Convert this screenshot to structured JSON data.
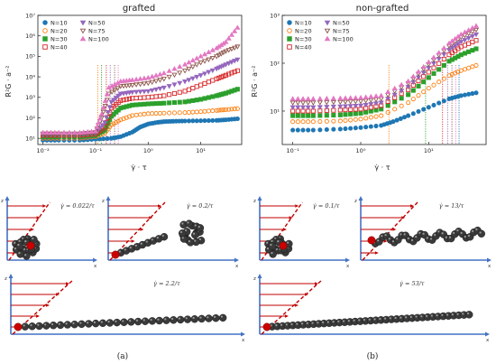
{
  "chart_data": [
    {
      "type": "scatter",
      "title": "grafted",
      "xscale": "log",
      "yscale": "log",
      "xlim": [
        0.008,
        60
      ],
      "ylim": [
        5,
        10000000
      ],
      "xticks": [
        "10⁻²",
        "10⁻¹",
        "10⁰",
        "10¹"
      ],
      "yticks": [
        "10¹",
        "10²",
        "10³",
        "10⁴",
        "10⁵",
        "10⁶",
        "10⁷"
      ],
      "xlabel": "γ̇ · τ",
      "ylabel": "R²G · a⁻²",
      "legend": "upper-left",
      "vlines": [
        0.11,
        0.13,
        0.16,
        0.19,
        0.23,
        0.27
      ],
      "series": [
        {
          "name": "N=10",
          "color": "#1f77b4",
          "marker": "circle-filled",
          "points": [
            [
              0.01,
              8
            ],
            [
              0.02,
              8
            ],
            [
              0.05,
              8
            ],
            [
              0.1,
              9
            ],
            [
              0.2,
              10
            ],
            [
              0.3,
              12
            ],
            [
              0.5,
              20
            ],
            [
              0.7,
              35
            ],
            [
              1,
              50
            ],
            [
              1.5,
              60
            ],
            [
              2,
              65
            ],
            [
              3,
              68
            ],
            [
              5,
              70
            ],
            [
              10,
              72
            ],
            [
              20,
              75
            ],
            [
              30,
              80
            ],
            [
              50,
              90
            ]
          ]
        },
        {
          "name": "N=20",
          "color": "#ff7f0e",
          "marker": "circle-open",
          "points": [
            [
              0.01,
              10
            ],
            [
              0.02,
              10
            ],
            [
              0.05,
              10
            ],
            [
              0.1,
              12
            ],
            [
              0.15,
              18
            ],
            [
              0.2,
              45
            ],
            [
              0.3,
              80
            ],
            [
              0.5,
              130
            ],
            [
              1,
              160
            ],
            [
              2,
              170
            ],
            [
              5,
              180
            ],
            [
              10,
              200
            ],
            [
              20,
              230
            ],
            [
              30,
              250
            ],
            [
              50,
              280
            ]
          ]
        },
        {
          "name": "N=30",
          "color": "#2ca02c",
          "marker": "square-filled",
          "points": [
            [
              0.01,
              12
            ],
            [
              0.02,
              12
            ],
            [
              0.05,
              12
            ],
            [
              0.1,
              14
            ],
            [
              0.15,
              25
            ],
            [
              0.2,
              120
            ],
            [
              0.3,
              300
            ],
            [
              0.5,
              420
            ],
            [
              1,
              480
            ],
            [
              2,
              520
            ],
            [
              5,
              600
            ],
            [
              10,
              800
            ],
            [
              20,
              1200
            ],
            [
              30,
              1600
            ],
            [
              50,
              2500
            ]
          ]
        },
        {
          "name": "N=40",
          "color": "#d62728",
          "marker": "square-open",
          "points": [
            [
              0.01,
              14
            ],
            [
              0.02,
              14
            ],
            [
              0.05,
              14
            ],
            [
              0.1,
              16
            ],
            [
              0.15,
              35
            ],
            [
              0.2,
              300
            ],
            [
              0.3,
              700
            ],
            [
              0.5,
              900
            ],
            [
              1,
              1000
            ],
            [
              2,
              1200
            ],
            [
              5,
              2000
            ],
            [
              10,
              4000
            ],
            [
              20,
              8000
            ],
            [
              30,
              12000
            ],
            [
              50,
              20000
            ]
          ]
        },
        {
          "name": "N=50",
          "color": "#9467bd",
          "marker": "tri-down-filled",
          "points": [
            [
              0.01,
              15
            ],
            [
              0.02,
              15
            ],
            [
              0.05,
              15
            ],
            [
              0.1,
              18
            ],
            [
              0.15,
              60
            ],
            [
              0.2,
              600
            ],
            [
              0.3,
              1500
            ],
            [
              0.5,
              1800
            ],
            [
              1,
              2000
            ],
            [
              2,
              3000
            ],
            [
              5,
              6000
            ],
            [
              10,
              12000
            ],
            [
              20,
              25000
            ],
            [
              30,
              40000
            ],
            [
              50,
              70000
            ]
          ]
        },
        {
          "name": "N=75",
          "color": "#8c564b",
          "marker": "tri-down-open",
          "points": [
            [
              0.01,
              17
            ],
            [
              0.02,
              17
            ],
            [
              0.05,
              17
            ],
            [
              0.1,
              20
            ],
            [
              0.13,
              100
            ],
            [
              0.18,
              1500
            ],
            [
              0.3,
              3500
            ],
            [
              0.5,
              4000
            ],
            [
              1,
              5000
            ],
            [
              2,
              8000
            ],
            [
              5,
              20000
            ],
            [
              10,
              50000
            ],
            [
              20,
              100000
            ],
            [
              30,
              180000
            ],
            [
              50,
              300000
            ]
          ]
        },
        {
          "name": "N=100",
          "color": "#e377c2",
          "marker": "tri-up-filled",
          "points": [
            [
              0.01,
              19
            ],
            [
              0.02,
              19
            ],
            [
              0.05,
              19
            ],
            [
              0.1,
              22
            ],
            [
              0.13,
              150
            ],
            [
              0.18,
              3000
            ],
            [
              0.3,
              6000
            ],
            [
              0.5,
              7000
            ],
            [
              1,
              9000
            ],
            [
              2,
              15000
            ],
            [
              5,
              40000
            ],
            [
              10,
              100000
            ],
            [
              20,
              250000
            ],
            [
              30,
              500000
            ],
            [
              50,
              2500000
            ]
          ]
        }
      ]
    },
    {
      "type": "scatter",
      "title": "non-grafted",
      "xscale": "log",
      "yscale": "log",
      "xlim": [
        0.07,
        70
      ],
      "ylim": [
        2,
        1000
      ],
      "xticks": [
        "10⁻¹",
        "10⁰",
        "10¹"
      ],
      "yticks": [
        "10¹",
        "10²",
        "10³"
      ],
      "xlabel": "γ̇ · τ",
      "ylabel": "R²G · a⁻²",
      "legend": "upper-left",
      "vlines": [
        2.6,
        9,
        16,
        19,
        22,
        25,
        28
      ],
      "series": [
        {
          "name": "N=10",
          "color": "#1f77b4",
          "marker": "circle-filled",
          "points": [
            [
              0.1,
              4
            ],
            [
              0.2,
              4
            ],
            [
              0.5,
              4.2
            ],
            [
              1,
              4.5
            ],
            [
              2,
              5
            ],
            [
              3,
              6
            ],
            [
              5,
              8
            ],
            [
              10,
              12
            ],
            [
              20,
              18
            ],
            [
              30,
              21
            ],
            [
              50,
              24
            ]
          ]
        },
        {
          "name": "N=20",
          "color": "#ff7f0e",
          "marker": "circle-open",
          "points": [
            [
              0.1,
              6
            ],
            [
              0.2,
              6
            ],
            [
              0.5,
              6.2
            ],
            [
              1,
              6.8
            ],
            [
              2,
              8
            ],
            [
              5,
              15
            ],
            [
              10,
              30
            ],
            [
              20,
              55
            ],
            [
              30,
              70
            ],
            [
              50,
              90
            ]
          ]
        },
        {
          "name": "N=30",
          "color": "#2ca02c",
          "marker": "square-filled",
          "points": [
            [
              0.1,
              8
            ],
            [
              0.2,
              8
            ],
            [
              0.5,
              8.3
            ],
            [
              1,
              9
            ],
            [
              2,
              11
            ],
            [
              5,
              22
            ],
            [
              10,
              50
            ],
            [
              20,
              110
            ],
            [
              30,
              150
            ],
            [
              50,
              200
            ]
          ]
        },
        {
          "name": "N=40",
          "color": "#d62728",
          "marker": "square-open",
          "points": [
            [
              0.1,
              10
            ],
            [
              0.2,
              10
            ],
            [
              0.5,
              10.5
            ],
            [
              1,
              11
            ],
            [
              2,
              13
            ],
            [
              5,
              28
            ],
            [
              10,
              65
            ],
            [
              20,
              150
            ],
            [
              30,
              220
            ],
            [
              50,
              300
            ]
          ]
        },
        {
          "name": "N=50",
          "color": "#9467bd",
          "marker": "tri-down-filled",
          "points": [
            [
              0.1,
              12
            ],
            [
              0.2,
              12
            ],
            [
              0.5,
              12.5
            ],
            [
              1,
              13
            ],
            [
              2,
              15
            ],
            [
              5,
              32
            ],
            [
              10,
              80
            ],
            [
              20,
              190
            ],
            [
              30,
              280
            ],
            [
              50,
              400
            ]
          ]
        },
        {
          "name": "N=75",
          "color": "#8c564b",
          "marker": "tri-down-open",
          "points": [
            [
              0.1,
              15
            ],
            [
              0.2,
              15
            ],
            [
              0.5,
              15.5
            ],
            [
              1,
              16
            ],
            [
              2,
              18
            ],
            [
              5,
              38
            ],
            [
              10,
              95
            ],
            [
              20,
              230
            ],
            [
              30,
              350
            ],
            [
              50,
              500
            ]
          ]
        },
        {
          "name": "N=100",
          "color": "#e377c2",
          "marker": "tri-up-filled",
          "points": [
            [
              0.1,
              18
            ],
            [
              0.2,
              18
            ],
            [
              0.5,
              18.5
            ],
            [
              1,
              19
            ],
            [
              2,
              21
            ],
            [
              5,
              42
            ],
            [
              10,
              105
            ],
            [
              20,
              260
            ],
            [
              30,
              400
            ],
            [
              50,
              600
            ]
          ]
        }
      ]
    }
  ],
  "snapshots": [
    {
      "label": "γ̇ = 0.022/τ",
      "beads": 20,
      "shape": "blob"
    },
    {
      "label": "γ̇ = 0.2/τ",
      "beads": 30,
      "shape": "arm"
    },
    {
      "label": "γ̇ = 2.2/τ",
      "beads": 30,
      "shape": "stretched"
    },
    {
      "label": "γ̇ = 0.1/τ",
      "beads": 18,
      "shape": "blob"
    },
    {
      "label": "γ̇ = 13/τ",
      "beads": 30,
      "shape": "coil-stretched"
    },
    {
      "label": "γ̇ = 53/τ",
      "beads": 40,
      "shape": "stretched"
    }
  ],
  "axis_letters": {
    "z": "z",
    "x": "x"
  },
  "captions": {
    "a": "(a)",
    "b": "(b)"
  },
  "colors": {
    "axis": "#4472c4",
    "shear": "#c00000",
    "bead": "#3a3a3a",
    "end": "#cc0000"
  }
}
